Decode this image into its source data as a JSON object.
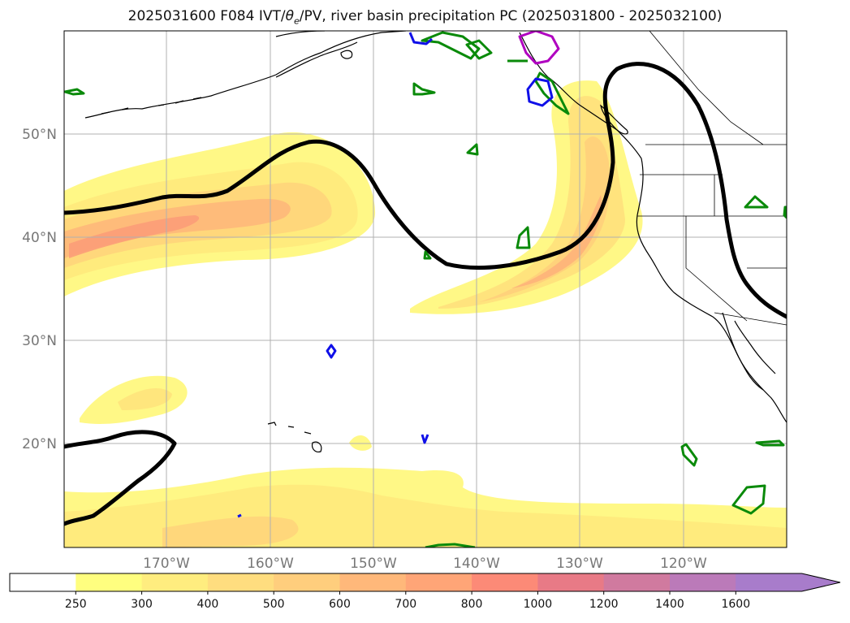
{
  "title": {
    "prefix": "2025031600 F084 IVT/",
    "theta": "θ",
    "theta_sub": "e",
    "suffix": "/PV, river basin precipitation PC (2025031800 - 2025032100)"
  },
  "axes": {
    "lat_labels": [
      "50°N",
      "40°N",
      "30°N",
      "20°N"
    ],
    "lon_labels": [
      "170°W",
      "160°W",
      "150°W",
      "140°W",
      "130°W",
      "120°W"
    ]
  },
  "colorbar": {
    "levels": [
      "250",
      "300",
      "400",
      "500",
      "600",
      "700",
      "800",
      "1000",
      "1200",
      "1400",
      "1600"
    ],
    "colors": [
      "#ffffff",
      "#fffe7f",
      "#ffed7f",
      "#ffdd7f",
      "#ffce7d",
      "#ffb87a",
      "#ffa577",
      "#fc8a77",
      "#e87a86",
      "#d07a9f",
      "#bb7ab9",
      "#a87ccb"
    ],
    "extend": "max"
  },
  "colors": {
    "ivt_contour_low": "#fff880",
    "ivt_contour_mid": "#ffd97c",
    "ivt_contour_high": "#fba07a",
    "pv_line": "#000000",
    "precip_green": "#0a8a0a",
    "precip_blue": "#1010e8",
    "precip_magenta": "#b000c0"
  }
}
